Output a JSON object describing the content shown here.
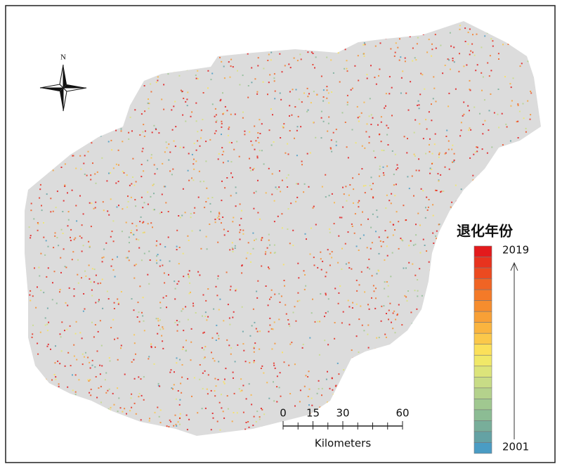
{
  "north_label": "N",
  "legend": {
    "title": "退化年份",
    "max_label": "2019",
    "min_label": "2001",
    "colors": [
      "#e31a1c",
      "#e8331e",
      "#ec4a20",
      "#f06424",
      "#f47a28",
      "#f68d2e",
      "#f8a036",
      "#fab43f",
      "#fbc84a",
      "#fbe05a",
      "#f0e868",
      "#dce47a",
      "#c8dc86",
      "#b4d28c",
      "#a0c890",
      "#8cbc94",
      "#78ae9a",
      "#64a2a4",
      "#4a9cc4"
    ]
  },
  "scale_bar": {
    "ticks": [
      0,
      15,
      30,
      60
    ],
    "unit": "Kilometers"
  }
}
